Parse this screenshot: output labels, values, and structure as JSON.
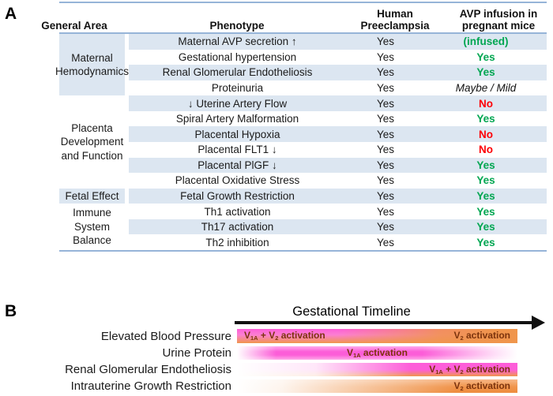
{
  "panel_a": {
    "label": "A",
    "headers": {
      "general_area": "General Area",
      "phenotype": "Phenotype",
      "human_preeclampsia": "Human\nPreeclampsia",
      "avp_infusion": "AVP infusion in\npregnant mice"
    },
    "groups": [
      {
        "label": "Maternal\nHemodynamics",
        "row_count": 4,
        "shaded": true
      },
      {
        "label": "Placenta\nDevelopment\nand Function",
        "row_count": 6,
        "shaded": false
      },
      {
        "label": "Fetal Effect",
        "row_count": 1,
        "shaded": true
      },
      {
        "label": "Immune\nSystem\nBalance",
        "row_count": 3,
        "shaded": false
      }
    ],
    "rows": [
      {
        "phenotype": "Maternal AVP secretion ↑",
        "human": "Yes",
        "mice": "(infused)",
        "mice_style": "green"
      },
      {
        "phenotype": "Gestational hypertension",
        "human": "Yes",
        "mice": "Yes",
        "mice_style": "green"
      },
      {
        "phenotype": "Renal Glomerular Endotheliosis",
        "human": "Yes",
        "mice": "Yes",
        "mice_style": "green"
      },
      {
        "phenotype": "Proteinuria",
        "human": "Yes",
        "mice": "Maybe / Mild",
        "mice_style": "maybe"
      },
      {
        "phenotype": "↓ Uterine Artery Flow",
        "human": "Yes",
        "mice": "No",
        "mice_style": "red"
      },
      {
        "phenotype": "Spiral Artery Malformation",
        "human": "Yes",
        "mice": "Yes",
        "mice_style": "green"
      },
      {
        "phenotype": "Placental Hypoxia",
        "human": "Yes",
        "mice": "No",
        "mice_style": "red"
      },
      {
        "phenotype": "Placental FLT1 ↓",
        "human": "Yes",
        "mice": "No",
        "mice_style": "red"
      },
      {
        "phenotype": "Placental PlGF ↓",
        "human": "Yes",
        "mice": "Yes",
        "mice_style": "green"
      },
      {
        "phenotype": "Placental Oxidative Stress",
        "human": "Yes",
        "mice": "Yes",
        "mice_style": "green"
      },
      {
        "phenotype": "Fetal Growth Restriction",
        "human": "Yes",
        "mice": "Yes",
        "mice_style": "green"
      },
      {
        "phenotype": "Th1 activation",
        "human": "Yes",
        "mice": "Yes",
        "mice_style": "green"
      },
      {
        "phenotype": "Th17 activation",
        "human": "Yes",
        "mice": "Yes",
        "mice_style": "green"
      },
      {
        "phenotype": "Th2 inhibition",
        "human": "Yes",
        "mice": "Yes",
        "mice_style": "green"
      }
    ],
    "colors": {
      "band": "#dce6f1",
      "border": "#96b4d8",
      "green": "#00a651",
      "red": "#fd0006"
    }
  },
  "panel_b": {
    "label": "B",
    "title": "Gestational Timeline",
    "bars": [
      {
        "name": "Elevated Blood Pressure",
        "kind": "magenta-to-orange",
        "texts": [
          {
            "align": "left",
            "segments": [
              {
                "t": "V"
              },
              {
                "t": "1A",
                "sub": true
              },
              {
                "t": " + V"
              },
              {
                "t": "2",
                "sub": true
              },
              {
                "t": " activation"
              }
            ]
          },
          {
            "align": "right",
            "segments": [
              {
                "t": "V"
              },
              {
                "t": "2",
                "sub": true
              },
              {
                "t": " activation"
              }
            ]
          }
        ]
      },
      {
        "name": "Urine Protein",
        "kind": "magenta-mid",
        "texts": [
          {
            "align": "center",
            "segments": [
              {
                "t": "V"
              },
              {
                "t": "1A",
                "sub": true
              },
              {
                "t": " activation"
              }
            ]
          }
        ]
      },
      {
        "name": "Renal Glomerular Endotheliosis",
        "kind": "white-to-magenta",
        "texts": [
          {
            "align": "right",
            "segments": [
              {
                "t": "V"
              },
              {
                "t": "1A",
                "sub": true
              },
              {
                "t": " + V"
              },
              {
                "t": "2",
                "sub": true
              },
              {
                "t": " activation"
              }
            ]
          }
        ]
      },
      {
        "name": "Intrauterine Growth Restriction",
        "kind": "white-to-orange",
        "texts": [
          {
            "align": "right",
            "segments": [
              {
                "t": "V"
              },
              {
                "t": "2",
                "sub": true
              },
              {
                "t": " activation"
              }
            ]
          }
        ]
      }
    ],
    "colors": {
      "magenta": "#fc5dd8",
      "orange": "#f0954c",
      "bar_text": "#7c330d"
    }
  }
}
